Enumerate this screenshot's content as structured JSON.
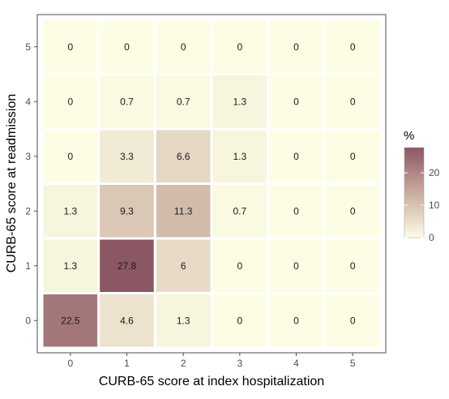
{
  "chart_data": {
    "type": "heatmap",
    "xlabel": "CURB-65 score at index hospitalization",
    "ylabel": "CURB-65 score at readmission",
    "x_categories": [
      "0",
      "1",
      "2",
      "3",
      "4",
      "5"
    ],
    "y_categories": [
      "0",
      "1",
      "2",
      "3",
      "4",
      "5"
    ],
    "values": [
      [
        22.5,
        4.6,
        1.3,
        0,
        0,
        0
      ],
      [
        1.3,
        27.8,
        6,
        0,
        0,
        0
      ],
      [
        1.3,
        9.3,
        11.3,
        0.7,
        0,
        0
      ],
      [
        0,
        3.3,
        6.6,
        1.3,
        0,
        0
      ],
      [
        0,
        0.7,
        0.7,
        1.3,
        0,
        0
      ],
      [
        0,
        0,
        0,
        0,
        0,
        0
      ]
    ],
    "cell_labels": [
      [
        "22.5",
        "4.6",
        "1.3",
        "0",
        "0",
        "0"
      ],
      [
        "1.3",
        "27.8",
        "6",
        "0",
        "0",
        "0"
      ],
      [
        "1.3",
        "9.3",
        "11.3",
        "0.7",
        "0",
        "0"
      ],
      [
        "0",
        "3.3",
        "6.6",
        "1.3",
        "0",
        "0"
      ],
      [
        "0",
        "0.7",
        "0.7",
        "1.3",
        "0",
        "0"
      ],
      [
        "0",
        "0",
        "0",
        "0",
        "0",
        "0"
      ]
    ],
    "legend": {
      "title": "%",
      "ticks": [
        0,
        10,
        20
      ],
      "range": [
        0,
        27.8
      ],
      "color_low": "#fdfde5",
      "color_mid": "#c9ac9f",
      "color_high": "#8b5763",
      "placement": "right"
    },
    "colors": {
      "panel_border": "#4d4d4d",
      "cell_border": "#ffffff"
    }
  }
}
